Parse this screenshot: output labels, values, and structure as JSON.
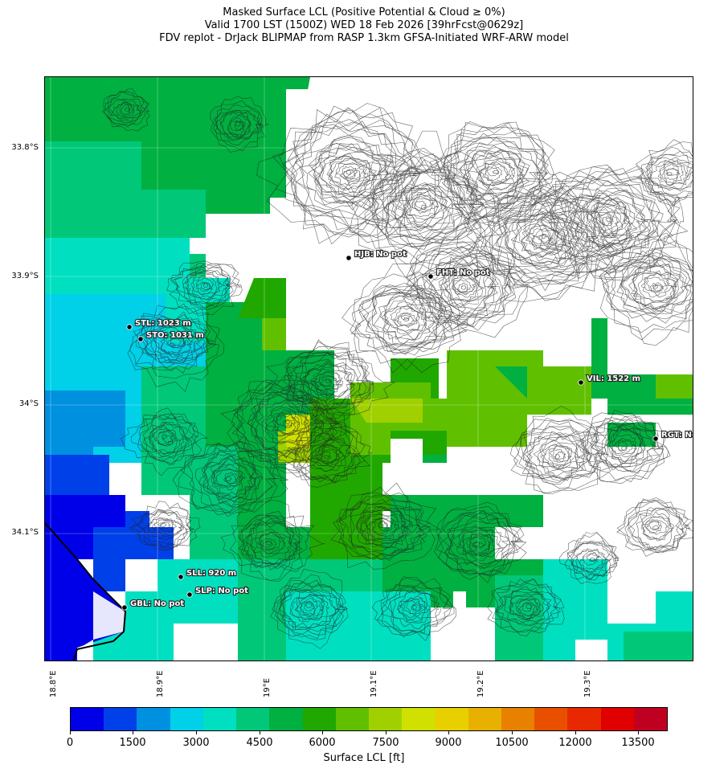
{
  "title": {
    "line1": "Masked Surface LCL (Positive Potential & Cloud ≥ 0%)",
    "line2": "Valid 1700 LST (1500Z) WED 18 Feb 2026 [39hrFcst@0629z]",
    "line3": "FDV replot - DrJack BLIPMAP from RASP 1.3km GFSA-Initiated WRF-ARW model"
  },
  "latitude_labels": [
    "33.8°S",
    "33.9°S",
    "34°S",
    "34.1°S"
  ],
  "longitude_labels": [
    "18.8°E",
    "18.9°E",
    "19°E",
    "19.1°E",
    "19.2°E",
    "19.3°E"
  ],
  "stations": [
    {
      "code": "HJB",
      "label": "HJB: No pot"
    },
    {
      "code": "FHT",
      "label": "FHT: No pot"
    },
    {
      "code": "STL",
      "label": "STL: 1023 m"
    },
    {
      "code": "STO",
      "label": "STO: 1031 m"
    },
    {
      "code": "VIL",
      "label": "VIL: 1522 m"
    },
    {
      "code": "RGT",
      "label": "RGT: No pot"
    },
    {
      "code": "SLL",
      "label": "SLL: 920 m"
    },
    {
      "code": "SLP",
      "label": "SLP: No pot"
    },
    {
      "code": "GBL",
      "label": "GBL: No pot"
    }
  ],
  "colorbar": {
    "label": "Surface LCL [ft]",
    "tick_labels": [
      "0",
      "1500",
      "3000",
      "4500",
      "6000",
      "7500",
      "9000",
      "10500",
      "12000",
      "13500"
    ],
    "range_ft": [
      0,
      14000
    ],
    "colors": [
      "#0000e8",
      "#0040e8",
      "#0090e0",
      "#00d0e8",
      "#00e0c0",
      "#00c878",
      "#00b040",
      "#20a800",
      "#60c000",
      "#a0d000",
      "#d0e000",
      "#e8d000",
      "#e8b000",
      "#e88000",
      "#e85000",
      "#e82800",
      "#e00000",
      "#c00020"
    ]
  }
}
